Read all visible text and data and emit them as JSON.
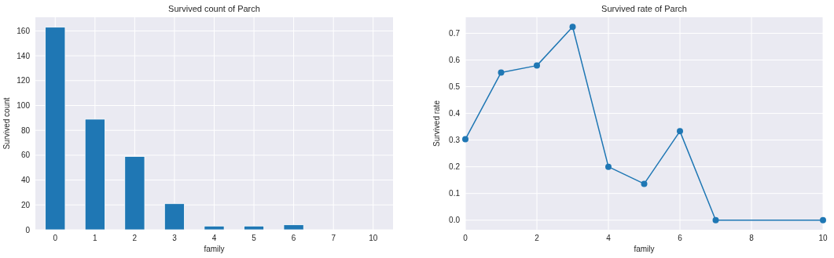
{
  "chart_data": [
    {
      "type": "bar",
      "title": "Survived count of Parch",
      "xlabel": "family",
      "ylabel": "Survived count",
      "categories": [
        "0",
        "1",
        "2",
        "3",
        "4",
        "5",
        "6",
        "7",
        "10"
      ],
      "values": [
        163,
        89,
        59,
        21,
        3,
        3,
        4,
        0,
        0
      ],
      "color": "#1f77b4",
      "ylim": [
        0,
        171
      ],
      "yticks": [
        0,
        20,
        40,
        60,
        80,
        100,
        120,
        140,
        160
      ],
      "grid": true
    },
    {
      "type": "line",
      "title": "Survived rate of Parch",
      "xlabel": "family",
      "ylabel": "Survived rate",
      "x": [
        0,
        1,
        2,
        3,
        4,
        5,
        6,
        7,
        10
      ],
      "values": [
        0.303,
        0.553,
        0.579,
        0.724,
        0.2,
        0.136,
        0.333,
        0,
        0
      ],
      "color": "#1f77b4",
      "marker": "circle",
      "xlim": [
        0,
        10
      ],
      "xticks": [
        0,
        2,
        4,
        6,
        8,
        10
      ],
      "ylim": [
        -0.036,
        0.76
      ],
      "yticks": [
        {
          "value": 0,
          "label": "0.0"
        },
        {
          "value": 0.1,
          "label": "0.1"
        },
        {
          "value": 0.2,
          "label": "0.2"
        },
        {
          "value": 0.3,
          "label": "0.3"
        },
        {
          "value": 0.4,
          "label": "0.4"
        },
        {
          "value": 0.5,
          "label": "0.5"
        },
        {
          "value": 0.6,
          "label": "0.6"
        },
        {
          "value": 0.7,
          "label": "0.7"
        }
      ],
      "grid": true
    }
  ]
}
